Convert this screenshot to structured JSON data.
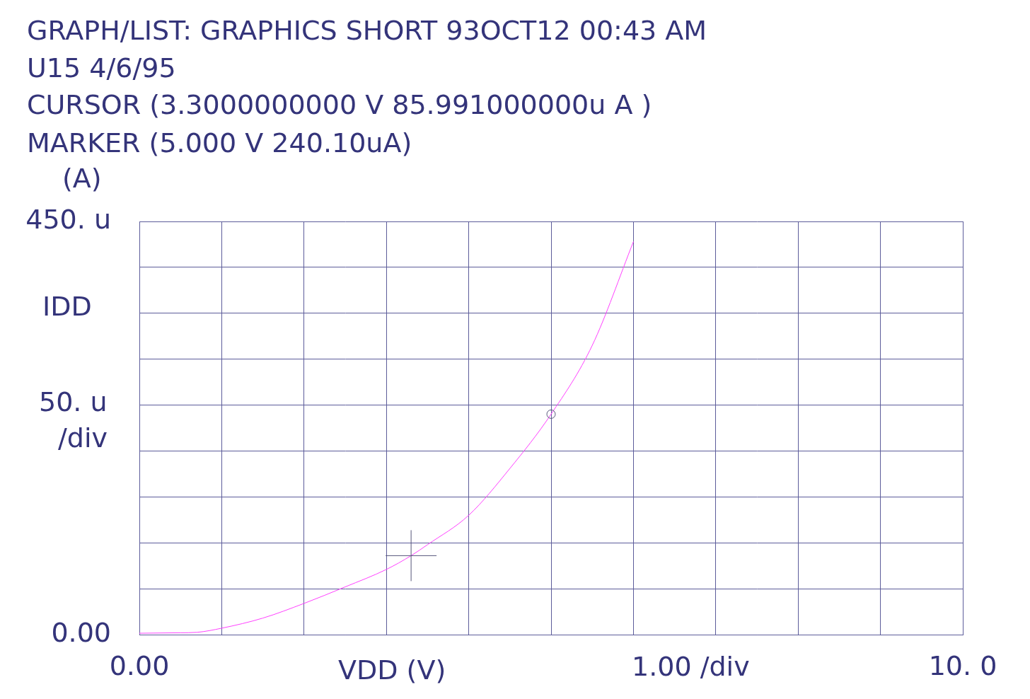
{
  "chart_data": {
    "type": "line",
    "title": "GRAPH/LIST: GRAPHICS SHORT 93OCT12 00:43 AM",
    "subtitle": "U15 4/6/95",
    "annotations": [
      {
        "text": "CURSOR (3.3000000000 V 85.991000000u A )",
        "x": 3.3,
        "y": 8.5991e-05,
        "marker": "cross"
      },
      {
        "text": "MARKER (5.000 V 240.10uA)",
        "x": 5.0,
        "y": 0.0002401,
        "marker": "circle"
      }
    ],
    "ylabel": "IDD",
    "y_unit_label": "(A)",
    "y_scale_label": [
      "50. u",
      "/div"
    ],
    "xlabel": "VDD (V)",
    "x_scale_label": "1.00 /div",
    "x": [
      0,
      0.5,
      0.7,
      1,
      1.5,
      2,
      2.5,
      3,
      3.3,
      3.5,
      4,
      4.5,
      5,
      5.5,
      6
    ],
    "values": [
      1.5e-06,
      2e-06,
      2.5e-06,
      7e-06,
      1.8e-05,
      3.4e-05,
      5.2e-05,
      7.1e-05,
      8.6e-05,
      9.8e-05,
      0.00013,
      0.000181,
      0.0002401,
      0.000315,
      0.000428
    ],
    "color": "#ff40ff",
    "xlim": [
      0,
      10
    ],
    "ylim": [
      0,
      0.00045
    ],
    "xticks": [
      {
        "value": 0,
        "label": "0.00"
      },
      {
        "value": 1,
        "label": null
      },
      {
        "value": 2,
        "label": null
      },
      {
        "value": 3,
        "label": null
      },
      {
        "value": 4,
        "label": null
      },
      {
        "value": 5,
        "label": null
      },
      {
        "value": 6,
        "label": null
      },
      {
        "value": 7,
        "label": null
      },
      {
        "value": 8,
        "label": null
      },
      {
        "value": 9,
        "label": null
      },
      {
        "value": 10,
        "label": "10. 0"
      }
    ],
    "yticks": [
      {
        "value": 0,
        "label": "0.00"
      },
      {
        "value": 5e-05,
        "label": null
      },
      {
        "value": 0.0001,
        "label": null
      },
      {
        "value": 0.00015,
        "label": null
      },
      {
        "value": 0.0002,
        "label": null
      },
      {
        "value": 0.00025,
        "label": null
      },
      {
        "value": 0.0003,
        "label": null
      },
      {
        "value": 0.00035,
        "label": null
      },
      {
        "value": 0.0004,
        "label": null
      },
      {
        "value": 0.00045,
        "label": "450. u"
      }
    ],
    "grid": true
  }
}
